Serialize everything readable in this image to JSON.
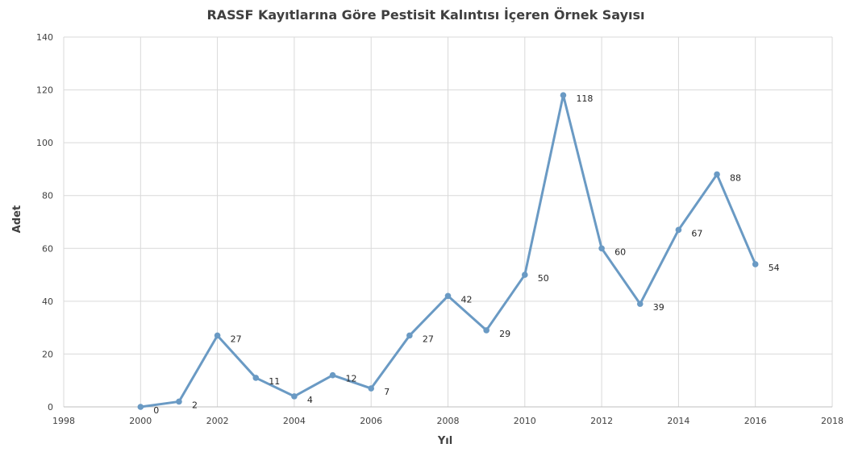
{
  "chart_data": {
    "type": "scatter",
    "title": "RASSF Kayıtlarına Göre Pestisit Kalıntısı İçeren Örnek Sayısı",
    "xlabel": "Yıl",
    "ylabel": "Adet",
    "xlim": [
      1998,
      2018
    ],
    "ylim": [
      0,
      140
    ],
    "x_ticks": [
      1998,
      2000,
      2002,
      2004,
      2006,
      2008,
      2010,
      2012,
      2014,
      2016,
      2018
    ],
    "y_ticks": [
      0,
      20,
      40,
      60,
      80,
      100,
      120,
      140
    ],
    "grid": true,
    "legend": "none",
    "series": [
      {
        "x": [
          2000,
          2001,
          2002,
          2003,
          2004,
          2005,
          2006,
          2007,
          2008,
          2009,
          2010,
          2011,
          2012,
          2013,
          2014,
          2015,
          2016
        ],
        "y": [
          0,
          2,
          27,
          11,
          4,
          12,
          7,
          27,
          42,
          29,
          50,
          118,
          60,
          39,
          67,
          88,
          54
        ],
        "color": "#6a9ac4"
      }
    ]
  }
}
